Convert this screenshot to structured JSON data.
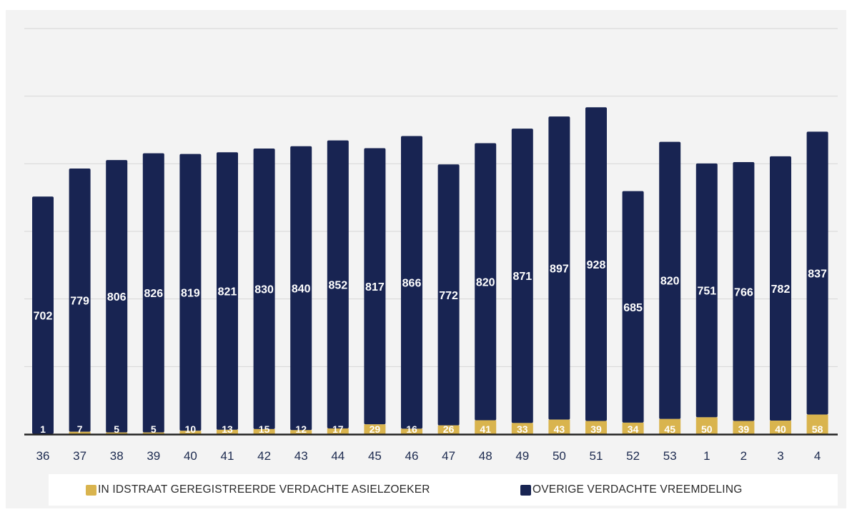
{
  "colors": {
    "accent": "#e3a826",
    "asielzoeker": "#d9b44e",
    "vreemdeling": "#182452",
    "label": "#ffffff",
    "axis_text": "#1c2a4f",
    "gridline": "#d6d6d6",
    "baseline": "#222222"
  },
  "chart_data": {
    "type": "bar",
    "stacked": true,
    "categories": [
      "36",
      "37",
      "38",
      "39",
      "40",
      "41",
      "42",
      "43",
      "44",
      "45",
      "46",
      "47",
      "48",
      "49",
      "50",
      "51",
      "52",
      "53",
      "1",
      "2",
      "3",
      "4"
    ],
    "series": [
      {
        "name": "IN IDSTRAAT GEREGISTREERDE VERDACHTE ASIELZOEKER",
        "color": "#d9b44e",
        "values": [
          1,
          7,
          5,
          5,
          10,
          13,
          15,
          12,
          17,
          29,
          16,
          26,
          41,
          33,
          43,
          39,
          34,
          45,
          50,
          39,
          40,
          58
        ]
      },
      {
        "name": "OVERIGE VERDACHTE VREEMDELING",
        "color": "#182452",
        "values": [
          702,
          779,
          806,
          826,
          819,
          821,
          830,
          840,
          852,
          817,
          866,
          772,
          820,
          871,
          897,
          928,
          685,
          820,
          751,
          766,
          782,
          837
        ]
      }
    ],
    "ylim": [
      0,
      1200
    ],
    "grid": true,
    "legend_position": "bottom",
    "data_labels": true
  }
}
